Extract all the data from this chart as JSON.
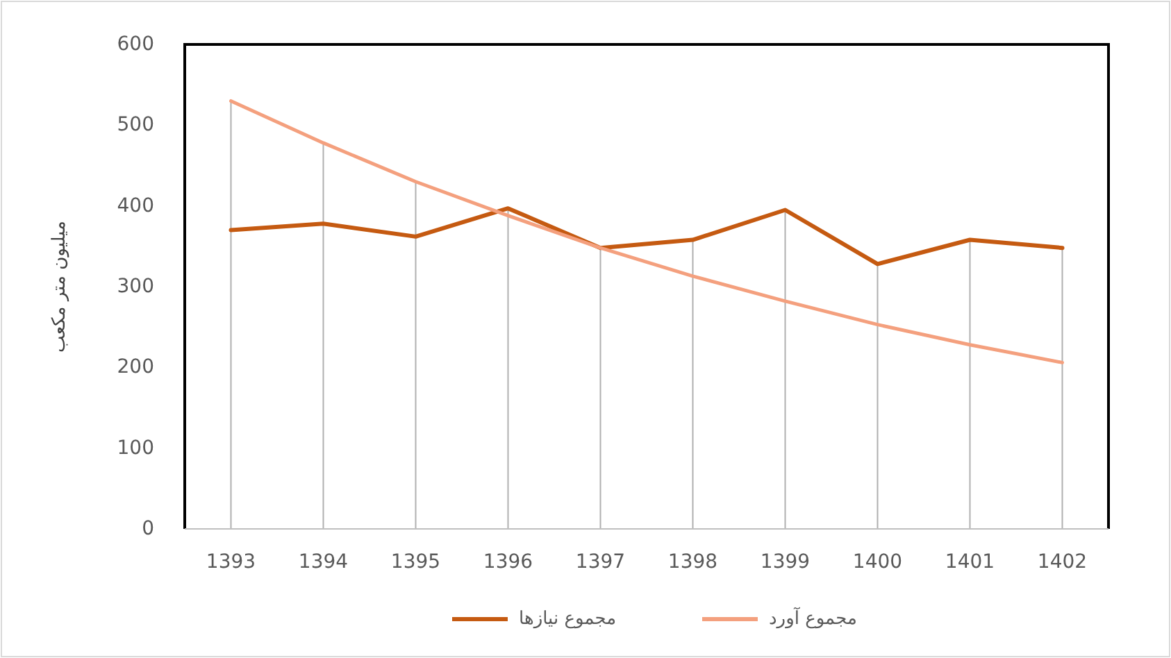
{
  "chart_data": {
    "type": "line",
    "ylabel": "میلیون متر مکعب",
    "categories": [
      "1393",
      "1394",
      "1395",
      "1396",
      "1397",
      "1398",
      "1399",
      "1400",
      "1401",
      "1402"
    ],
    "series": [
      {
        "name": "مجموع نیازها",
        "color": "#c55a11",
        "values": [
          370,
          378,
          362,
          397,
          348,
          358,
          395,
          328,
          358,
          348
        ]
      },
      {
        "name": "مجموع آورد",
        "color": "#f4a07e",
        "values": [
          530,
          478,
          430,
          388,
          348,
          313,
          282,
          253,
          228,
          206
        ]
      }
    ],
    "ref_lines": [
      {
        "axis": "x",
        "value": "1393",
        "color": "#b0b0b0"
      },
      {
        "axis": "x",
        "value": "1394",
        "color": "#b0b0b0"
      },
      {
        "axis": "x",
        "value": "1395",
        "color": "#b0b0b0"
      },
      {
        "axis": "x",
        "value": "1396",
        "color": "#b0b0b0"
      },
      {
        "axis": "x",
        "value": "1397",
        "color": "#b0b0b0"
      },
      {
        "axis": "x",
        "value": "1398",
        "color": "#b0b0b0"
      },
      {
        "axis": "x",
        "value": "1399",
        "color": "#b0b0b0"
      },
      {
        "axis": "x",
        "value": "1400",
        "color": "#b0b0b0"
      },
      {
        "axis": "x",
        "value": "1401",
        "color": "#b0b0b0"
      },
      {
        "axis": "x",
        "value": "1402",
        "color": "#b0b0b0"
      }
    ],
    "ylim": [
      0,
      600
    ],
    "yticks": [
      0,
      100,
      200,
      300,
      400,
      500,
      600
    ],
    "grid": false,
    "legend": "bottom",
    "marker": "none",
    "line_style": "solid"
  }
}
